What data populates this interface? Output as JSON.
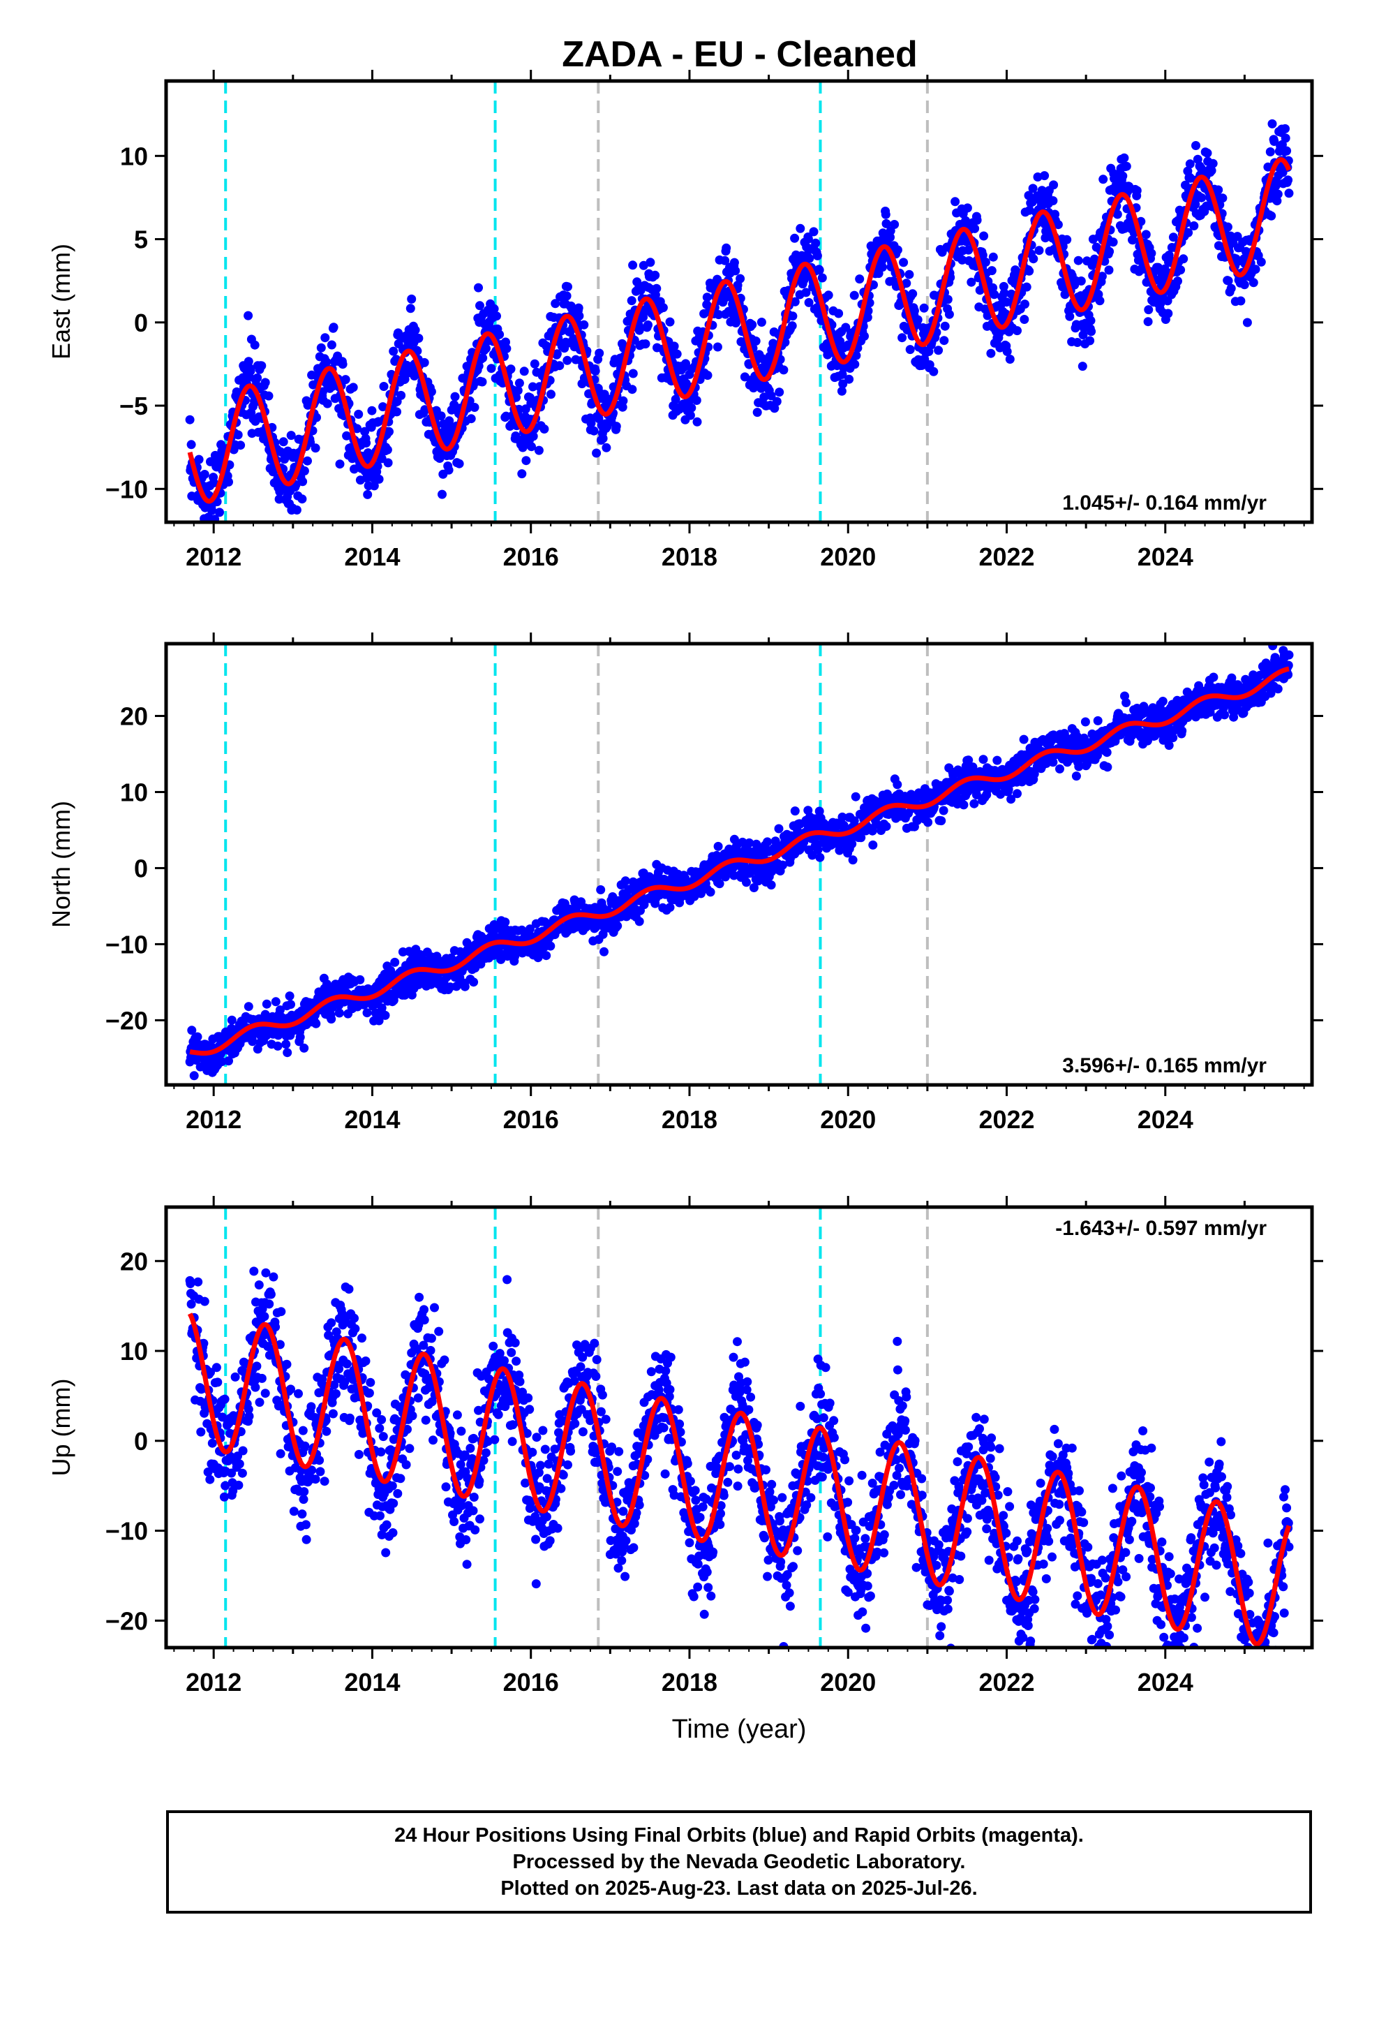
{
  "title": "ZADA  - EU - Cleaned",
  "xlabel": "Time (year)",
  "footer": {
    "line1": "24 Hour Positions Using Final Orbits (blue) and Rapid Orbits (magenta).",
    "line2": "Processed by the Nevada Geodetic Laboratory.",
    "line3": "Plotted on 2025-Aug-23. Last data on 2025-Jul-26."
  },
  "colors": {
    "data_points": "#0000ff",
    "model_fit": "#ff0000",
    "equipment_change_line": "#00e5ee",
    "other_event_line": "#bebebe"
  },
  "chart_data": [
    {
      "type": "scatter",
      "title": "ZADA  - EU - Cleaned",
      "xlabel": "",
      "ylabel": "East (mm)",
      "xlim": [
        2011.4,
        2025.85
      ],
      "ylim": [
        -12,
        14.5
      ],
      "x_ticks": [
        "2012",
        "2014",
        "2016",
        "2018",
        "2020",
        "2022",
        "2024"
      ],
      "y_ticks": [
        "−10",
        "−5",
        "0",
        "5",
        "10"
      ],
      "rate_text": "1.045+/- 0.164 mm/yr",
      "rate_position": "bottom-right",
      "time_span": [
        2011.7,
        2025.56
      ],
      "fit": {
        "offset_2011_7": -7.8,
        "trend_mm_per_yr": 1.045,
        "seasonal_amplitude": 3.2,
        "seasonal_peak_phase_yr": 0.45
      },
      "scatter_sd": 1.2,
      "event_lines": [
        {
          "x": 2012.15,
          "kind": "cyan"
        },
        {
          "x": 2015.55,
          "kind": "cyan"
        },
        {
          "x": 2016.85,
          "kind": "gray"
        },
        {
          "x": 2019.65,
          "kind": "cyan"
        },
        {
          "x": 2021.0,
          "kind": "gray"
        }
      ]
    },
    {
      "type": "scatter",
      "title": "",
      "xlabel": "",
      "ylabel": "North (mm)",
      "xlim": [
        2011.4,
        2025.85
      ],
      "ylim": [
        -28.5,
        29.5
      ],
      "x_ticks": [
        "2012",
        "2014",
        "2016",
        "2018",
        "2020",
        "2022",
        "2024"
      ],
      "y_ticks": [
        "−20",
        "−10",
        "0",
        "10",
        "20"
      ],
      "rate_text": "3.596+/- 0.165 mm/yr",
      "rate_position": "bottom-right",
      "time_span": [
        2011.7,
        2025.56
      ],
      "fit": {
        "offset_2011_7": -24.4,
        "trend_mm_per_yr": 3.596,
        "seasonal_amplitude": 0.8,
        "seasonal_peak_phase_yr": 0.5
      },
      "scatter_sd": 1.3,
      "event_lines": [
        {
          "x": 2012.15,
          "kind": "cyan"
        },
        {
          "x": 2015.55,
          "kind": "cyan"
        },
        {
          "x": 2016.85,
          "kind": "gray"
        },
        {
          "x": 2019.65,
          "kind": "cyan"
        },
        {
          "x": 2021.0,
          "kind": "gray"
        }
      ]
    },
    {
      "type": "scatter",
      "title": "",
      "xlabel": "Time (year)",
      "ylabel": "Up (mm)",
      "xlim": [
        2011.4,
        2025.85
      ],
      "ylim": [
        -23,
        26
      ],
      "x_ticks": [
        "2012",
        "2014",
        "2016",
        "2018",
        "2020",
        "2022",
        "2024"
      ],
      "y_ticks": [
        "−20",
        "−10",
        "0",
        "10",
        "20"
      ],
      "rate_text": "-1.643+/- 0.597 mm/yr",
      "rate_position": "top-right",
      "time_span": [
        2011.7,
        2025.56
      ],
      "fit": {
        "offset_2011_7": 7.0,
        "trend_mm_per_yr": -1.643,
        "seasonal_amplitude": 7.5,
        "seasonal_peak_phase_yr": 0.65
      },
      "scatter_sd": 3.4,
      "event_lines": [
        {
          "x": 2012.15,
          "kind": "cyan"
        },
        {
          "x": 2015.55,
          "kind": "cyan"
        },
        {
          "x": 2016.85,
          "kind": "gray"
        },
        {
          "x": 2019.65,
          "kind": "cyan"
        },
        {
          "x": 2021.0,
          "kind": "gray"
        }
      ]
    }
  ]
}
